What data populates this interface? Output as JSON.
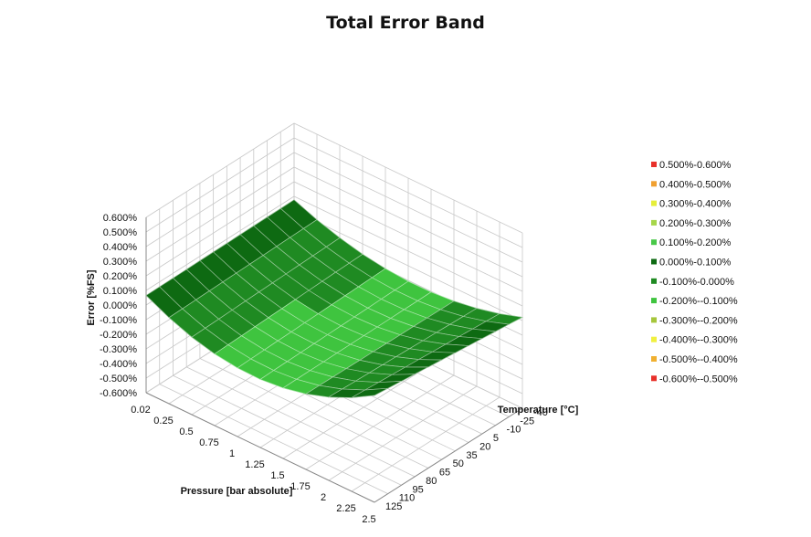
{
  "chart_data": {
    "type": "surface",
    "title": "Total Error Band",
    "zlabel": "Error [%FS]",
    "xlabel": "Pressure [bar absolute]",
    "ylabel": "Temperature [°C]",
    "z_ticks": [
      "0.600%",
      "0.500%",
      "0.400%",
      "0.300%",
      "0.200%",
      "0.100%",
      "0.000%",
      "-0.100%",
      "-0.200%",
      "-0.300%",
      "-0.400%",
      "-0.500%",
      "-0.600%"
    ],
    "z_values": [
      0.6,
      0.5,
      0.4,
      0.3,
      0.2,
      0.1,
      0.0,
      -0.1,
      -0.2,
      -0.3,
      -0.4,
      -0.5,
      -0.6
    ],
    "zlim": [
      -0.6,
      0.6
    ],
    "pressure_ticks": [
      "0.02",
      "0.25",
      "0.5",
      "0.75",
      "1",
      "1.25",
      "1.5",
      "1.75",
      "2",
      "2.25",
      "2.5"
    ],
    "temperature_ticks": [
      "-40",
      "-25",
      "-10",
      "5",
      "20",
      "35",
      "50",
      "65",
      "80",
      "95",
      "110",
      "125"
    ],
    "legend": [
      {
        "label": "0.500%-0.600%",
        "color": "#e8302a"
      },
      {
        "label": "0.400%-0.500%",
        "color": "#f0a030"
      },
      {
        "label": "0.300%-0.400%",
        "color": "#e6ee3a"
      },
      {
        "label": "0.200%-0.300%",
        "color": "#a6d64a"
      },
      {
        "label": "0.100%-0.200%",
        "color": "#48c848"
      },
      {
        "label": "0.000%-0.100%",
        "color": "#0e6a12"
      },
      {
        "label": "-0.100%-0.000%",
        "color": "#1f8a22"
      },
      {
        "label": "-0.200%--0.100%",
        "color": "#3fc43f"
      },
      {
        "label": "-0.300%--0.200%",
        "color": "#a6c63c"
      },
      {
        "label": "-0.400%--0.300%",
        "color": "#f0f040"
      },
      {
        "label": "-0.500%--0.400%",
        "color": "#f0b030"
      },
      {
        "label": "-0.600%--0.500%",
        "color": "#e8302a"
      }
    ],
    "legend_position": "right",
    "grid": true
  }
}
